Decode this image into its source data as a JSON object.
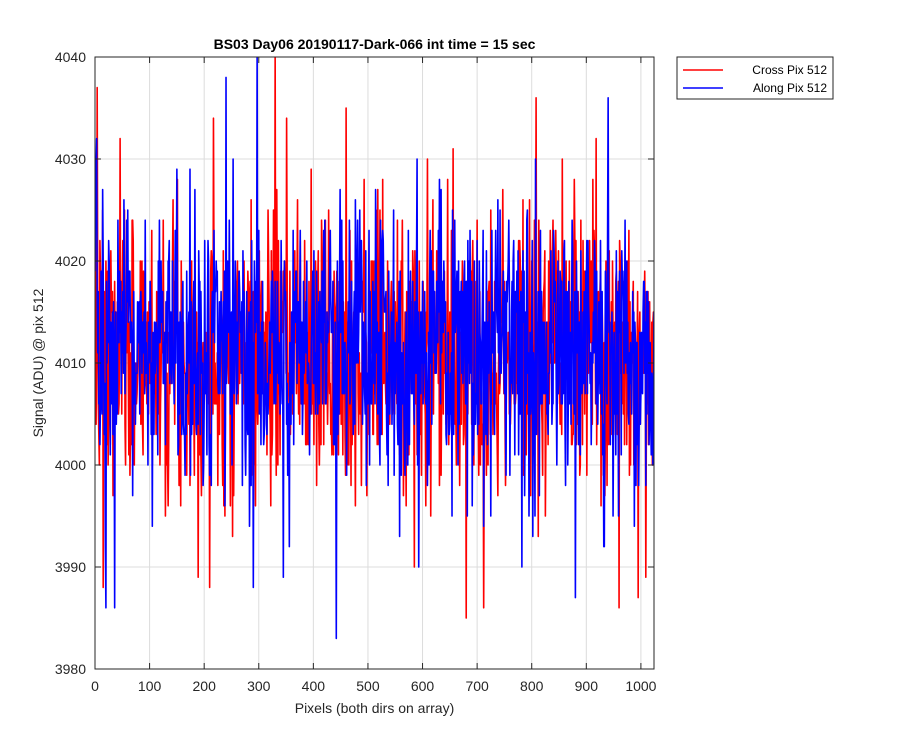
{
  "chart_data": {
    "type": "line",
    "title": "BS03 Day06 20190117-Dark-066 int time = 15 sec",
    "xlabel": "Pixels (both dirs on array)",
    "ylabel": "Signal (ADU) @ pix 512",
    "xlim": [
      0,
      1024
    ],
    "ylim": [
      3980,
      4040
    ],
    "xticks": [
      0,
      100,
      200,
      300,
      400,
      500,
      600,
      700,
      800,
      900,
      1000
    ],
    "yticks": [
      3980,
      3990,
      4000,
      4010,
      4020,
      4030,
      4040
    ],
    "grid": true,
    "legend_position": "outside-top-right",
    "noise_model": {
      "mean": 4011,
      "std": 7
    },
    "series": [
      {
        "name": "Cross Pix 512",
        "color": "#ff0000",
        "seed": 7,
        "anchor_points": [
          [
            0,
            4030
          ],
          [
            4,
            4037
          ],
          [
            7,
            4003
          ],
          [
            15,
            3988
          ],
          [
            24,
            4000
          ],
          [
            60,
            4015
          ],
          [
            120,
            4006
          ],
          [
            210,
            3988
          ],
          [
            330,
            4041
          ],
          [
            460,
            4035
          ],
          [
            585,
            3990
          ],
          [
            680,
            3985
          ],
          [
            760,
            4007
          ],
          [
            808,
            4036
          ],
          [
            960,
            3986
          ],
          [
            995,
            3987
          ],
          [
            1024,
            4004
          ]
        ]
      },
      {
        "name": "Along Pix 512",
        "color": "#0000ff",
        "seed": 13,
        "anchor_points": [
          [
            0,
            4019
          ],
          [
            3,
            4032
          ],
          [
            20,
            3986
          ],
          [
            36,
            3986
          ],
          [
            240,
            4038
          ],
          [
            290,
            3988
          ],
          [
            297,
            4041
          ],
          [
            345,
            3989
          ],
          [
            442,
            3983
          ],
          [
            515,
            4020
          ],
          [
            880,
            3987
          ],
          [
            940,
            4036
          ],
          [
            1024,
            4015
          ]
        ]
      }
    ]
  }
}
